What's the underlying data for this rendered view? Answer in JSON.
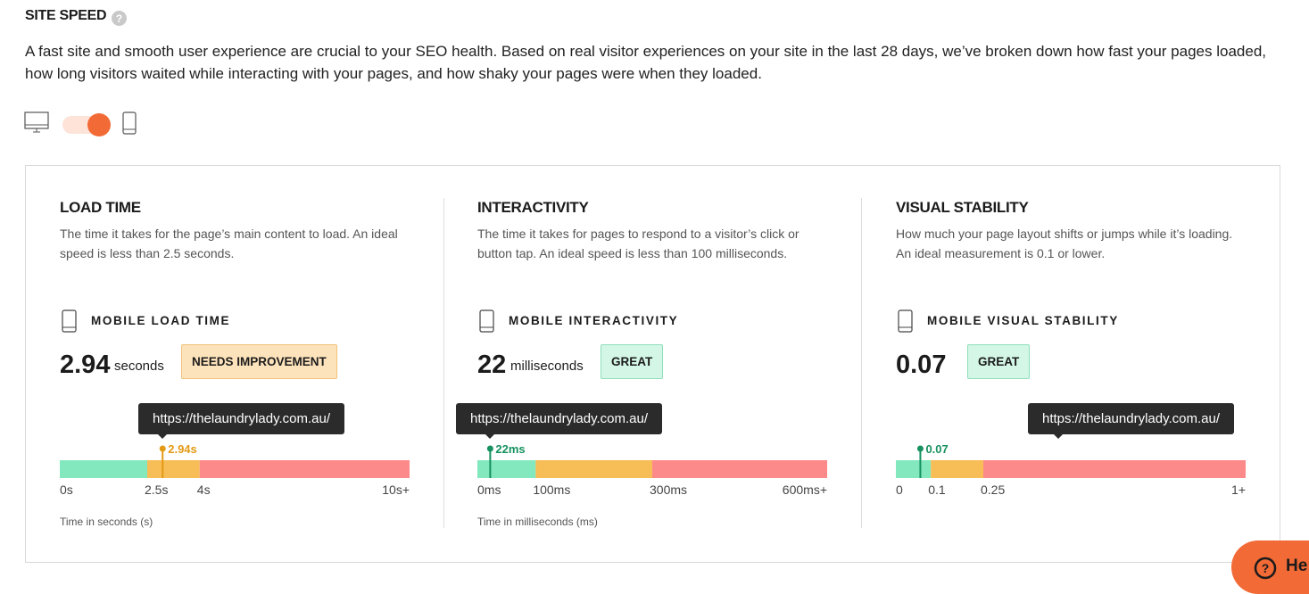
{
  "header": {
    "title": "SITE SPEED",
    "description": "A fast site and smooth user experience are crucial to your SEO health. Based on real visitor experiences on your site in the last 28 days, we’ve broken down how fast your pages loaded, how long visitors waited while interacting with your pages, and how shaky your pages were when they loaded."
  },
  "panels": [
    {
      "title": "LOAD TIME",
      "description": "The time it takes for the page’s main content to load. An ideal speed is less than 2.5 seconds.",
      "metric_label": "MOBILE LOAD TIME",
      "value": 2.94,
      "unit": "seconds",
      "status": "NEEDS IMPROVEMENT",
      "tooltip": "https://thelaundrylady.com.au/",
      "gauge": {
        "ticks": [
          {
            "value": 0,
            "label": "0s"
          },
          {
            "value": 2.5,
            "label": "2.5s"
          },
          {
            "value": 4,
            "label": "4s"
          },
          {
            "value": 10,
            "label": "10s+"
          }
        ],
        "marker": {
          "value": 2.94,
          "label": "2.94s"
        }
      },
      "axis_label": "Time in seconds (s)"
    },
    {
      "title": "INTERACTIVITY",
      "description": "The time it takes for pages to respond to a visitor’s click or button tap. An ideal speed is less than 100 milliseconds.",
      "metric_label": "MOBILE INTERACTIVITY",
      "value": 22,
      "unit": "milliseconds",
      "status": "GREAT",
      "tooltip": "https://thelaundrylady.com.au/",
      "gauge": {
        "ticks": [
          {
            "value": 0,
            "label": "0ms"
          },
          {
            "value": 100,
            "label": "100ms"
          },
          {
            "value": 300,
            "label": "300ms"
          },
          {
            "value": 600,
            "label": "600ms+"
          }
        ],
        "marker": {
          "value": 22,
          "label": "22ms"
        }
      },
      "axis_label": "Time in milliseconds (ms)"
    },
    {
      "title": "VISUAL STABILITY",
      "description": "How much your page layout shifts or jumps while it’s loading. An ideal measurement is 0.1 or lower.",
      "metric_label": "MOBILE VISUAL STABILITY",
      "value": 0.07,
      "status": "GREAT",
      "tooltip": "https://thelaundrylady.com.au/",
      "gauge": {
        "ticks": [
          0,
          0.1,
          0.25,
          {
            "value": 1,
            "label": "1+"
          }
        ],
        "marker": 0.07
      }
    }
  ],
  "help_button": "He"
}
